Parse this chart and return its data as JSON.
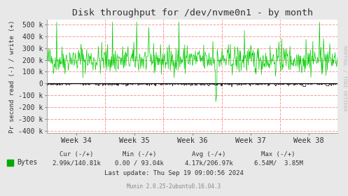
{
  "title": "Disk throughput for /dev/nvme0n1 - by month",
  "ylabel": "Pr second read (-) / write (+)",
  "xlabel_ticks": [
    "Week 34",
    "Week 35",
    "Week 36",
    "Week 37",
    "Week 38"
  ],
  "ylim": [
    -420000,
    540000
  ],
  "yticks": [
    -400000,
    -300000,
    -200000,
    -100000,
    0,
    100000,
    200000,
    300000,
    400000,
    500000
  ],
  "ytick_labels": [
    "-400 k",
    "-300 k",
    "-200 k",
    "-100 k",
    "0",
    "100 k",
    "200 k",
    "300 k",
    "400 k",
    "500 k"
  ],
  "bg_color": "#e8e8e8",
  "plot_bg_color": "#ffffff",
  "grid_color": "#ff9999",
  "line_color_write": "#00cc00",
  "line_color_read": "#000000",
  "title_color": "#333333",
  "legend_text": "Bytes",
  "legend_color": "#00aa00",
  "cur_label": "Cur (-/+)",
  "cur_value": "2.99k/140.81k",
  "min_label": "Min (-/+)",
  "min_value": "0.00 / 93.04k",
  "avg_label": "Avg (-/+)",
  "avg_value": "4.17k/206.97k",
  "max_label": "Max (-/+)",
  "max_value": "6.54M/  3.85M",
  "last_update": "Last update: Thu Sep 19 09:00:56 2024",
  "munin_text": "Munin 2.0.25-2ubuntu0.16.04.3",
  "rrdtool_text": "RRDTOOL / TOBI OETIKER",
  "n_points": 600,
  "seed": 42
}
